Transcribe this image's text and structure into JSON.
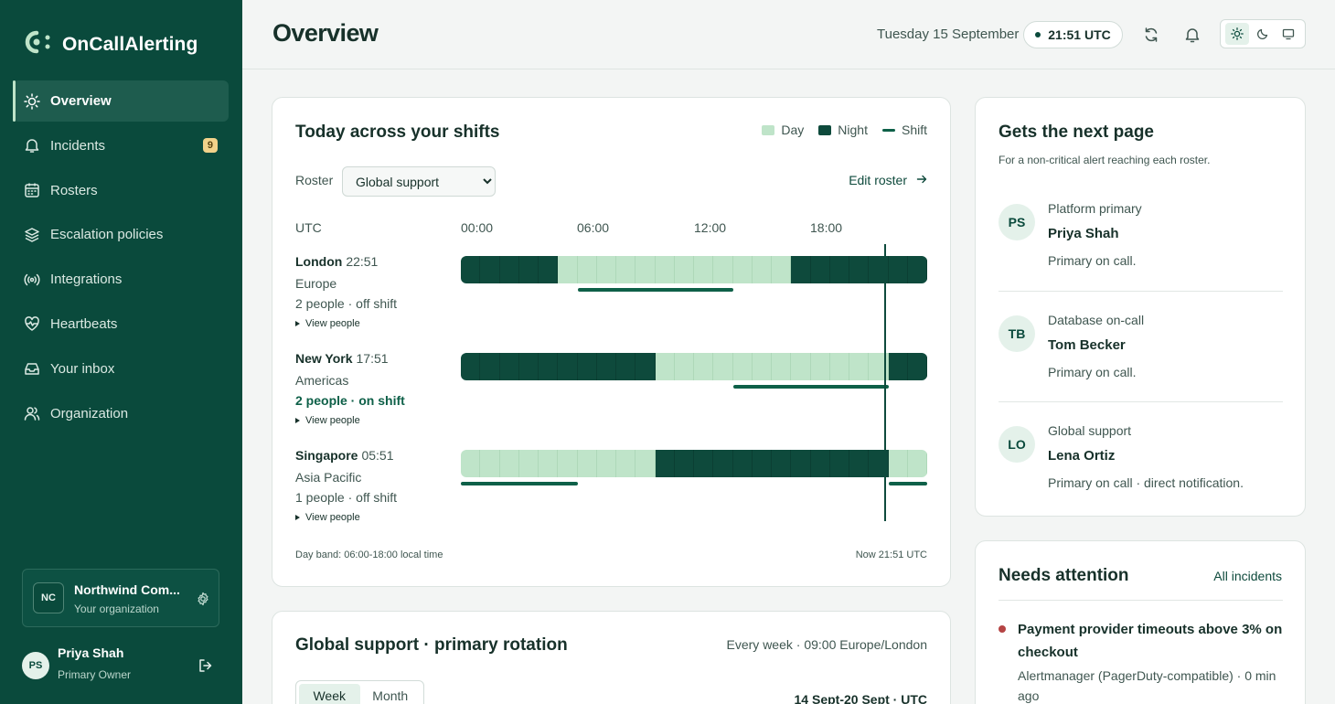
{
  "app": {
    "name": "OnCallAlerting"
  },
  "sidebar": {
    "items": [
      {
        "label": "Overview",
        "icon": "sun-icon",
        "active": true
      },
      {
        "label": "Incidents",
        "icon": "bell-icon",
        "badge": "9"
      },
      {
        "label": "Rosters",
        "icon": "calendar-icon"
      },
      {
        "label": "Escalation policies",
        "icon": "layers-icon"
      },
      {
        "label": "Integrations",
        "icon": "broadcast-icon"
      },
      {
        "label": "Heartbeats",
        "icon": "heart-pulse-icon"
      },
      {
        "label": "Your inbox",
        "icon": "inbox-icon"
      },
      {
        "label": "Organization",
        "icon": "users-icon"
      }
    ],
    "org": {
      "initials": "NC",
      "name": "Northwind Com...",
      "sub": "Your organization"
    },
    "user": {
      "initials": "PS",
      "name": "Priya Shah",
      "role": "Primary Owner"
    }
  },
  "header": {
    "title": "Overview",
    "date": "Tuesday 15 September",
    "clock": "21:51 UTC"
  },
  "shifts": {
    "title": "Today across your shifts",
    "legend": {
      "day": "Day",
      "night": "Night",
      "shift": "Shift"
    },
    "roster_label": "Roster",
    "roster_value": "Global support",
    "edit_roster": "Edit roster",
    "tz": "UTC",
    "hours": [
      "00:00",
      "06:00",
      "12:00",
      "18:00"
    ],
    "now_hour": 21.85,
    "cities": [
      {
        "name": "London",
        "time": "22:51",
        "region": "Europe",
        "status": "2 people · off shift",
        "on_shift": false,
        "view": "View people",
        "day_start": 5,
        "day_end": 17,
        "shift_start": 6,
        "shift_end": 14
      },
      {
        "name": "New York",
        "time": "17:51",
        "region": "Americas",
        "status": "2 people · on shift",
        "on_shift": true,
        "view": "View people",
        "day_start": 10,
        "day_end": 22,
        "shift_start": 14,
        "shift_end": 22
      },
      {
        "name": "Singapore",
        "time": "05:51",
        "region": "Asia Pacific",
        "status": "1 people · off shift",
        "on_shift": false,
        "view": "View people",
        "day_start": 22,
        "day_end": 10,
        "shift_start": 22,
        "shift_end": 6
      }
    ],
    "footer_left": "Day band: 06:00-18:00 local time",
    "footer_right": "Now 21:51 UTC"
  },
  "next_page": {
    "title": "Gets the next page",
    "subtitle": "For a non-critical alert reaching each roster.",
    "people": [
      {
        "initials": "PS",
        "roster": "Platform primary",
        "name": "Priya Shah",
        "status": "Primary on call."
      },
      {
        "initials": "TB",
        "roster": "Database on-call",
        "name": "Tom Becker",
        "status": "Primary on call."
      },
      {
        "initials": "LO",
        "roster": "Global support",
        "name": "Lena Ortiz",
        "status": "Primary on call · direct notification."
      }
    ]
  },
  "attention": {
    "title": "Needs attention",
    "link": "All incidents",
    "incident_title": "Payment provider timeouts above 3% on checkout",
    "incident_meta": "Alertmanager (PagerDuty-compatible) · 0 min ago"
  },
  "rotation": {
    "title": "Global support · primary rotation",
    "meta": "Every week · 09:00 Europe/London",
    "tabs": [
      "Week",
      "Month"
    ],
    "range": "14 Sept-20 Sept · UTC"
  },
  "colors": {
    "sidebar": "#0a4a3c",
    "day": "#bfe4c9",
    "night": "#0e4a3c",
    "shift": "#0e6048",
    "alert": "#b54444"
  }
}
